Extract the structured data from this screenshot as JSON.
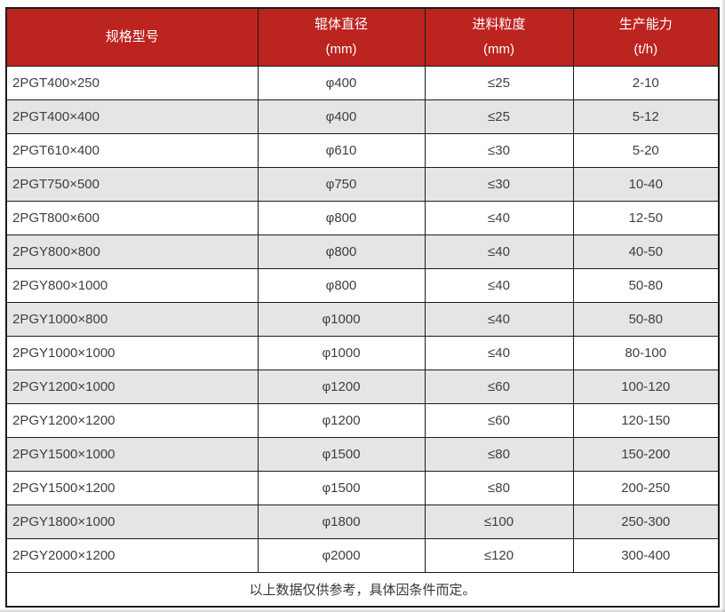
{
  "colors": {
    "header_bg": "#bc2420",
    "header_text": "#ffffff",
    "stripe_bg": "#e5e5e5",
    "border": "#1b1b1b",
    "body_text": "#3f3f3f"
  },
  "chart_data": {
    "type": "table",
    "columns": [
      {
        "title": "规格型号",
        "unit": ""
      },
      {
        "title": "辊体直径",
        "unit": "(mm)"
      },
      {
        "title": "进料粒度",
        "unit": "(mm)"
      },
      {
        "title": "生产能力",
        "unit": "(t/h)"
      }
    ],
    "rows": [
      [
        "2PGT400×250",
        "φ400",
        "≤25",
        "2-10"
      ],
      [
        "2PGT400×400",
        "φ400",
        "≤25",
        "5-12"
      ],
      [
        "2PGT610×400",
        "φ610",
        "≤30",
        "5-20"
      ],
      [
        "2PGT750×500",
        "φ750",
        "≤30",
        "10-40"
      ],
      [
        "2PGT800×600",
        "φ800",
        "≤40",
        "12-50"
      ],
      [
        "2PGY800×800",
        "φ800",
        "≤40",
        "40-50"
      ],
      [
        "2PGY800×1000",
        "φ800",
        "≤40",
        "50-80"
      ],
      [
        "2PGY1000×800",
        "φ1000",
        "≤40",
        "50-80"
      ],
      [
        "2PGY1000×1000",
        "φ1000",
        "≤40",
        "80-100"
      ],
      [
        "2PGY1200×1000",
        "φ1200",
        "≤60",
        "100-120"
      ],
      [
        "2PGY1200×1200",
        "φ1200",
        "≤60",
        "120-150"
      ],
      [
        "2PGY1500×1000",
        "φ1500",
        "≤80",
        "150-200"
      ],
      [
        "2PGY1500×1200",
        "φ1500",
        "≤80",
        "200-250"
      ],
      [
        "2PGY1800×1000",
        "φ1800",
        "≤100",
        "250-300"
      ],
      [
        "2PGY2000×1200",
        "φ2000",
        "≤120",
        "300-400"
      ]
    ],
    "footnote": "以上数据仅供参考，具体因条件而定。",
    "layout": {
      "striped": true,
      "first_row_stripe": false,
      "grid": true,
      "first_column_align": "left",
      "other_columns_align": "center"
    }
  }
}
